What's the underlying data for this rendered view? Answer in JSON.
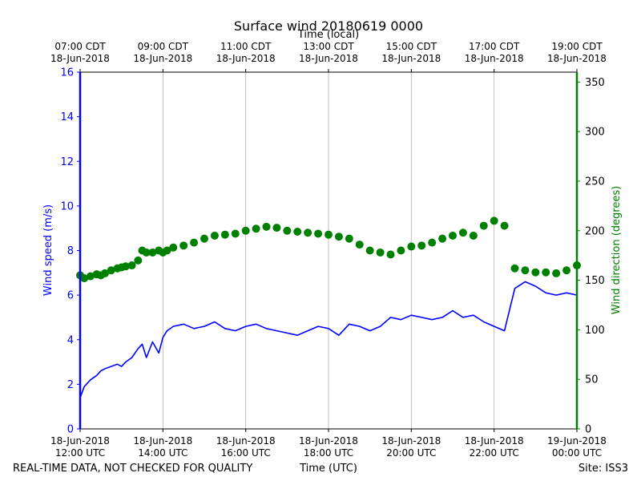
{
  "chart_data": {
    "type": "line",
    "title": "Surface wind 20180619 0000",
    "top_axis_label": "Time (local)",
    "xlabel": "Time (UTC)",
    "footer_left": "REAL-TIME DATA, NOT CHECKED FOR QUALITY",
    "footer_right": "Site: ISS3",
    "x_range_hours": [
      12,
      24
    ],
    "bottom_ticks": [
      {
        "hour": 12,
        "line1": "18-Jun-2018",
        "line2": "12:00 UTC"
      },
      {
        "hour": 14,
        "line1": "18-Jun-2018",
        "line2": "14:00 UTC"
      },
      {
        "hour": 16,
        "line1": "18-Jun-2018",
        "line2": "16:00 UTC"
      },
      {
        "hour": 18,
        "line1": "18-Jun-2018",
        "line2": "18:00 UTC"
      },
      {
        "hour": 20,
        "line1": "18-Jun-2018",
        "line2": "20:00 UTC"
      },
      {
        "hour": 22,
        "line1": "18-Jun-2018",
        "line2": "22:00 UTC"
      },
      {
        "hour": 24,
        "line1": "19-Jun-2018",
        "line2": "00:00 UTC"
      }
    ],
    "top_ticks": [
      {
        "hour": 12,
        "line1": "07:00 CDT",
        "line2": "18-Jun-2018"
      },
      {
        "hour": 14,
        "line1": "09:00 CDT",
        "line2": "18-Jun-2018"
      },
      {
        "hour": 16,
        "line1": "11:00 CDT",
        "line2": "18-Jun-2018"
      },
      {
        "hour": 18,
        "line1": "13:00 CDT",
        "line2": "18-Jun-2018"
      },
      {
        "hour": 20,
        "line1": "15:00 CDT",
        "line2": "18-Jun-2018"
      },
      {
        "hour": 22,
        "line1": "17:00 CDT",
        "line2": "18-Jun-2018"
      },
      {
        "hour": 24,
        "line1": "19:00 CDT",
        "line2": "18-Jun-2018"
      }
    ],
    "left_axis": {
      "label": "Wind speed (m/s)",
      "ylim": [
        0,
        16
      ],
      "ticks": [
        0,
        2,
        4,
        6,
        8,
        10,
        12,
        14,
        16
      ],
      "color": "#0000ff"
    },
    "right_axis": {
      "label": "Wind direction (degrees)",
      "ylim": [
        0,
        360
      ],
      "ticks": [
        0,
        50,
        100,
        150,
        200,
        250,
        300,
        350
      ],
      "color": "#008000"
    },
    "grid": "vertical",
    "series": [
      {
        "name": "Wind speed",
        "axis": "left",
        "style": "line",
        "color": "#0000ff",
        "x": [
          12.0,
          12.1,
          12.25,
          12.4,
          12.5,
          12.6,
          12.75,
          12.9,
          13.0,
          13.1,
          13.25,
          13.4,
          13.5,
          13.6,
          13.75,
          13.9,
          14.0,
          14.1,
          14.25,
          14.5,
          14.75,
          15.0,
          15.25,
          15.5,
          15.75,
          16.0,
          16.25,
          16.5,
          16.75,
          17.0,
          17.25,
          17.5,
          17.75,
          18.0,
          18.25,
          18.5,
          18.75,
          19.0,
          19.25,
          19.5,
          19.75,
          20.0,
          20.25,
          20.5,
          20.75,
          21.0,
          21.25,
          21.5,
          21.75,
          22.0,
          22.25,
          22.5,
          22.75,
          23.0,
          23.25,
          23.5,
          23.75,
          24.0
        ],
        "values": [
          1.4,
          1.9,
          2.2,
          2.4,
          2.6,
          2.7,
          2.8,
          2.9,
          2.8,
          3.0,
          3.2,
          3.6,
          3.8,
          3.2,
          3.9,
          3.4,
          4.1,
          4.4,
          4.6,
          4.7,
          4.5,
          4.6,
          4.8,
          4.5,
          4.4,
          4.6,
          4.7,
          4.5,
          4.4,
          4.3,
          4.2,
          4.4,
          4.6,
          4.5,
          4.2,
          4.7,
          4.6,
          4.4,
          4.6,
          5.0,
          4.9,
          5.1,
          5.0,
          4.9,
          5.0,
          5.3,
          5.0,
          5.1,
          4.8,
          4.6,
          4.4,
          6.3,
          6.6,
          6.4,
          6.1,
          6.0,
          6.1,
          6.0
        ]
      },
      {
        "name": "Wind direction",
        "axis": "right",
        "style": "scatter",
        "color": "#008000",
        "x": [
          12.0,
          12.1,
          12.25,
          12.4,
          12.5,
          12.6,
          12.75,
          12.9,
          13.0,
          13.1,
          13.25,
          13.4,
          13.5,
          13.6,
          13.75,
          13.9,
          14.0,
          14.1,
          14.25,
          14.5,
          14.75,
          15.0,
          15.25,
          15.5,
          15.75,
          16.0,
          16.25,
          16.5,
          16.75,
          17.0,
          17.25,
          17.5,
          17.75,
          18.0,
          18.25,
          18.5,
          18.75,
          19.0,
          19.25,
          19.5,
          19.75,
          20.0,
          20.25,
          20.5,
          20.75,
          21.0,
          21.25,
          21.5,
          21.75,
          22.0,
          22.25,
          22.5,
          22.75,
          23.0,
          23.25,
          23.5,
          23.75,
          24.0
        ],
        "values": [
          155,
          152,
          154,
          156,
          155,
          157,
          160,
          162,
          163,
          164,
          165,
          170,
          180,
          178,
          178,
          180,
          178,
          180,
          183,
          185,
          188,
          192,
          195,
          196,
          197,
          200,
          202,
          204,
          203,
          200,
          199,
          198,
          197,
          196,
          194,
          192,
          186,
          180,
          178,
          176,
          180,
          184,
          185,
          188,
          192,
          195,
          198,
          195,
          205,
          210,
          205,
          162,
          160,
          158,
          158,
          157,
          160,
          165
        ]
      }
    ]
  }
}
